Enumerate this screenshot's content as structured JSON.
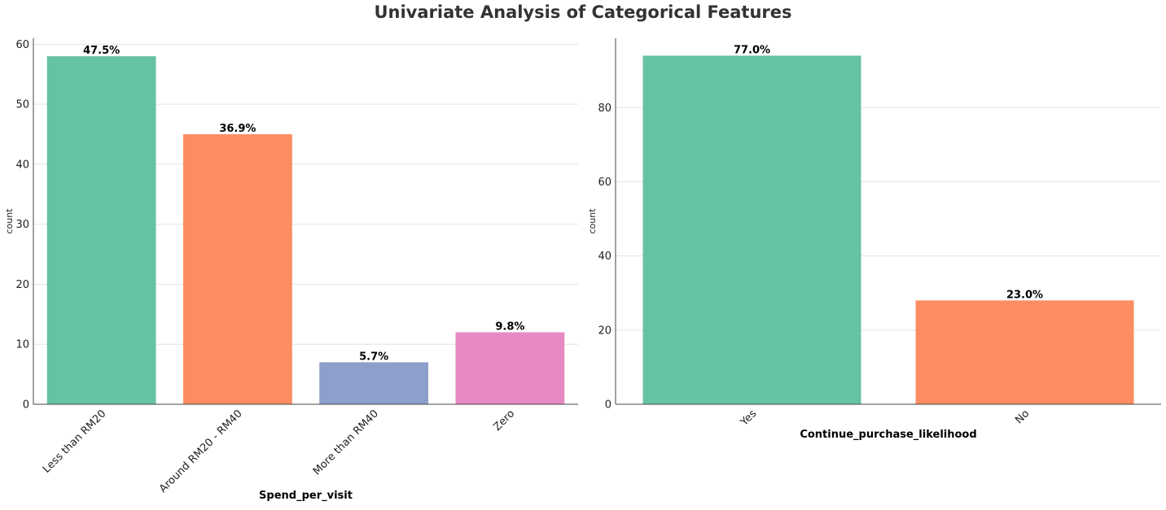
{
  "figure_title": "Univariate Analysis of Categorical Features",
  "chart_data": [
    {
      "type": "bar",
      "categories": [
        "Less than RM20",
        "Around RM20 - RM40",
        "More than RM40",
        "Zero"
      ],
      "values": [
        58,
        45,
        7,
        12
      ],
      "data_labels": [
        "47.5%",
        "36.9%",
        "5.7%",
        "9.8%"
      ],
      "colors": [
        "#66c2a5",
        "#fc8d62",
        "#8da0cb",
        "#e78ac3"
      ],
      "xlabel": "Spend_per_visit",
      "ylabel": "count",
      "ylim": [
        0,
        61
      ],
      "yticks": [
        0,
        10,
        20,
        30,
        40,
        50,
        60
      ],
      "grid": "y",
      "xtick_rotation": -45
    },
    {
      "type": "bar",
      "categories": [
        "Yes",
        "No"
      ],
      "values": [
        94,
        28
      ],
      "data_labels": [
        "77.0%",
        "23.0%"
      ],
      "colors": [
        "#66c2a5",
        "#fc8d62"
      ],
      "xlabel": "Continue_purchase_likelihood",
      "ylabel": "count",
      "ylim": [
        0,
        98.7
      ],
      "yticks": [
        0,
        20,
        40,
        60,
        80
      ],
      "grid": "y",
      "xtick_rotation": -45
    }
  ]
}
